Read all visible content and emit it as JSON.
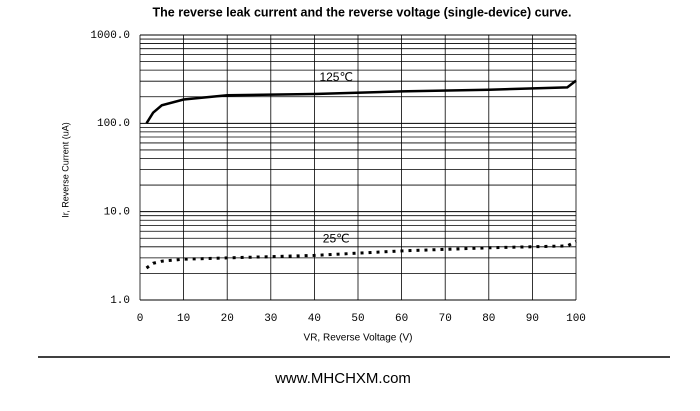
{
  "chart_data": {
    "type": "line",
    "title": "The reverse leak current and the reverse voltage (single-device) curve.",
    "x_label": "VR, Reverse Voltage (V)",
    "y_label": "Ir, Reverse Current (uA)",
    "x": [
      1.5,
      3,
      5,
      10,
      20,
      40,
      60,
      80,
      98,
      100
    ],
    "series": [
      {
        "name": "125℃",
        "color": "#000000",
        "style": "solid",
        "values": [
          100,
          132,
          160,
          186,
          208,
          215,
          230,
          240,
          255,
          305
        ]
      },
      {
        "name": "25℃",
        "color": "#000000",
        "style": "dotted",
        "values": [
          2.3,
          2.6,
          2.75,
          2.9,
          3.0,
          3.2,
          3.6,
          3.9,
          4.1,
          4.6
        ]
      }
    ],
    "xlim": [
      0,
      100
    ],
    "xticks": [
      0,
      10,
      20,
      30,
      40,
      50,
      60,
      70,
      80,
      90,
      100
    ],
    "ylim": [
      1,
      1000
    ],
    "yscale": "log",
    "yticks": [
      {
        "value": 1,
        "label": "1.0"
      },
      {
        "value": 10,
        "label": "10.0"
      },
      {
        "value": 100,
        "label": "100.0"
      },
      {
        "value": 1000,
        "label": "1000.0"
      }
    ],
    "grid": true,
    "minor_grid": true
  },
  "footer": "www.MHCHXM.com"
}
